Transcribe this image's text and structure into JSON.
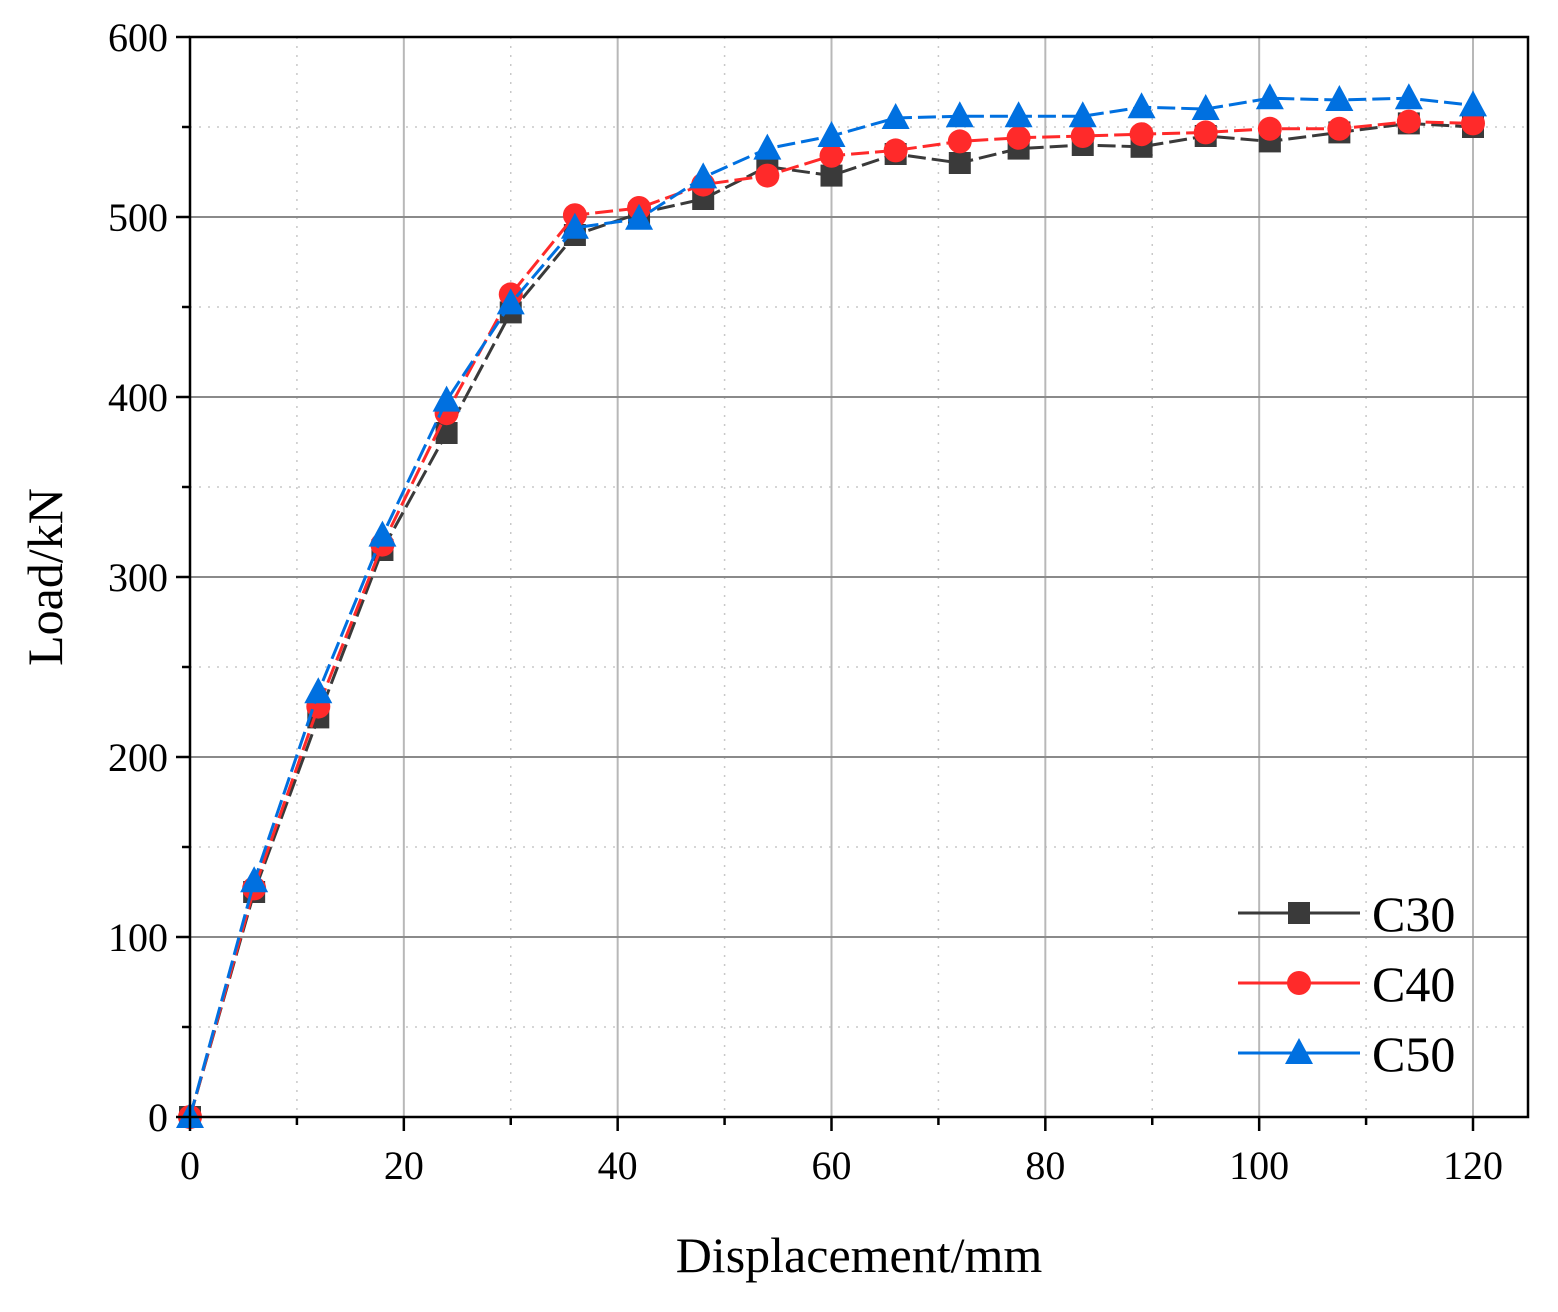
{
  "chart_data": {
    "type": "line",
    "title": "",
    "xlabel": "Displacement/mm",
    "ylabel": "Load/kN",
    "xlim": [
      0,
      125
    ],
    "ylim": [
      0,
      600
    ],
    "x_ticks": [
      "0",
      "20",
      "40",
      "60",
      "80",
      "100",
      "120"
    ],
    "y_ticks": [
      "0",
      "100",
      "200",
      "300",
      "400",
      "500",
      "600"
    ],
    "grid": true,
    "legend_position": "bottom-right",
    "series": [
      {
        "name": "C30",
        "color": "#3a3a3a",
        "marker": "square",
        "x": [
          0,
          6,
          12,
          18,
          24,
          30,
          36,
          42,
          48,
          54,
          60,
          66,
          72,
          77.5,
          83.5,
          89,
          95,
          101,
          107.5,
          114,
          120
        ],
        "y": [
          0,
          125,
          222,
          315,
          380,
          447,
          490,
          502,
          510,
          528,
          523,
          535,
          530,
          538,
          540,
          539,
          545,
          542,
          547,
          552,
          550
        ]
      },
      {
        "name": "C40",
        "color": "#ff2a2a",
        "marker": "circle",
        "x": [
          0,
          6,
          12,
          18,
          24,
          30,
          36,
          42,
          48,
          54,
          60,
          66,
          72,
          77.5,
          83.5,
          89,
          95,
          101,
          107.5,
          114,
          120
        ],
        "y": [
          0,
          127,
          228,
          318,
          391,
          457,
          501,
          505,
          518,
          523,
          534,
          537,
          542,
          544,
          545,
          546,
          547,
          549,
          549,
          553,
          552
        ]
      },
      {
        "name": "C50",
        "color": "#0070e0",
        "marker": "triangle",
        "x": [
          0,
          6,
          12,
          18,
          24,
          30,
          36,
          42,
          48,
          54,
          60,
          66,
          72,
          77.5,
          83.5,
          89,
          95,
          101,
          107.5,
          114,
          120
        ],
        "y": [
          0,
          131,
          236,
          323,
          398,
          452,
          494,
          499,
          522,
          538,
          545,
          555,
          556,
          556,
          556,
          561,
          560,
          566,
          565,
          566,
          562
        ]
      }
    ]
  }
}
